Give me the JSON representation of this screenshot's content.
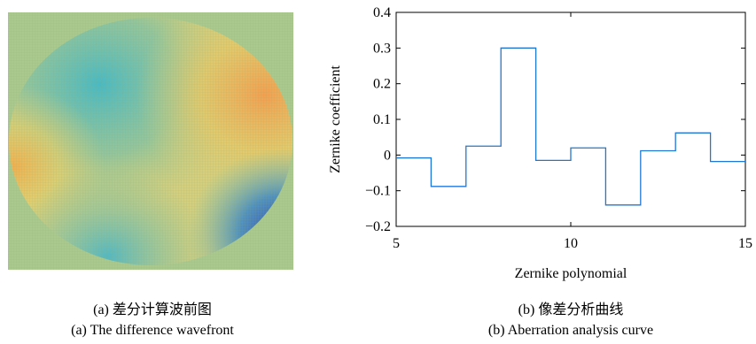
{
  "left_panel": {
    "caption_cn": "(a) 差分计算波前图",
    "caption_en": "(a) The difference wavefront"
  },
  "right_panel": {
    "caption_cn": "(b) 像差分析曲线",
    "caption_en": "(b) Aberration analysis curve"
  },
  "chart_data": {
    "type": "line",
    "drawstyle": "steps-post",
    "xlabel": "Zernike polynomial",
    "ylabel": "Zernike coefficient",
    "xlim": [
      5,
      15
    ],
    "ylim": [
      -0.2,
      0.4
    ],
    "xticks": [
      5,
      10,
      15
    ],
    "yticks": [
      -0.2,
      -0.1,
      0,
      0.1,
      0.2,
      0.3,
      0.4
    ],
    "ytick_labels": [
      "−0.2",
      "−0.1",
      "0",
      "0.1",
      "0.2",
      "0.3",
      "0.4"
    ],
    "grid": false,
    "series": [
      {
        "color": "#1f77d4",
        "x": [
          5,
          6,
          7,
          8,
          9,
          10,
          11,
          12,
          13,
          14
        ],
        "y": [
          -0.008,
          -0.088,
          0.025,
          0.3,
          -0.015,
          0.02,
          -0.14,
          0.012,
          0.062,
          -0.018
        ]
      }
    ]
  }
}
